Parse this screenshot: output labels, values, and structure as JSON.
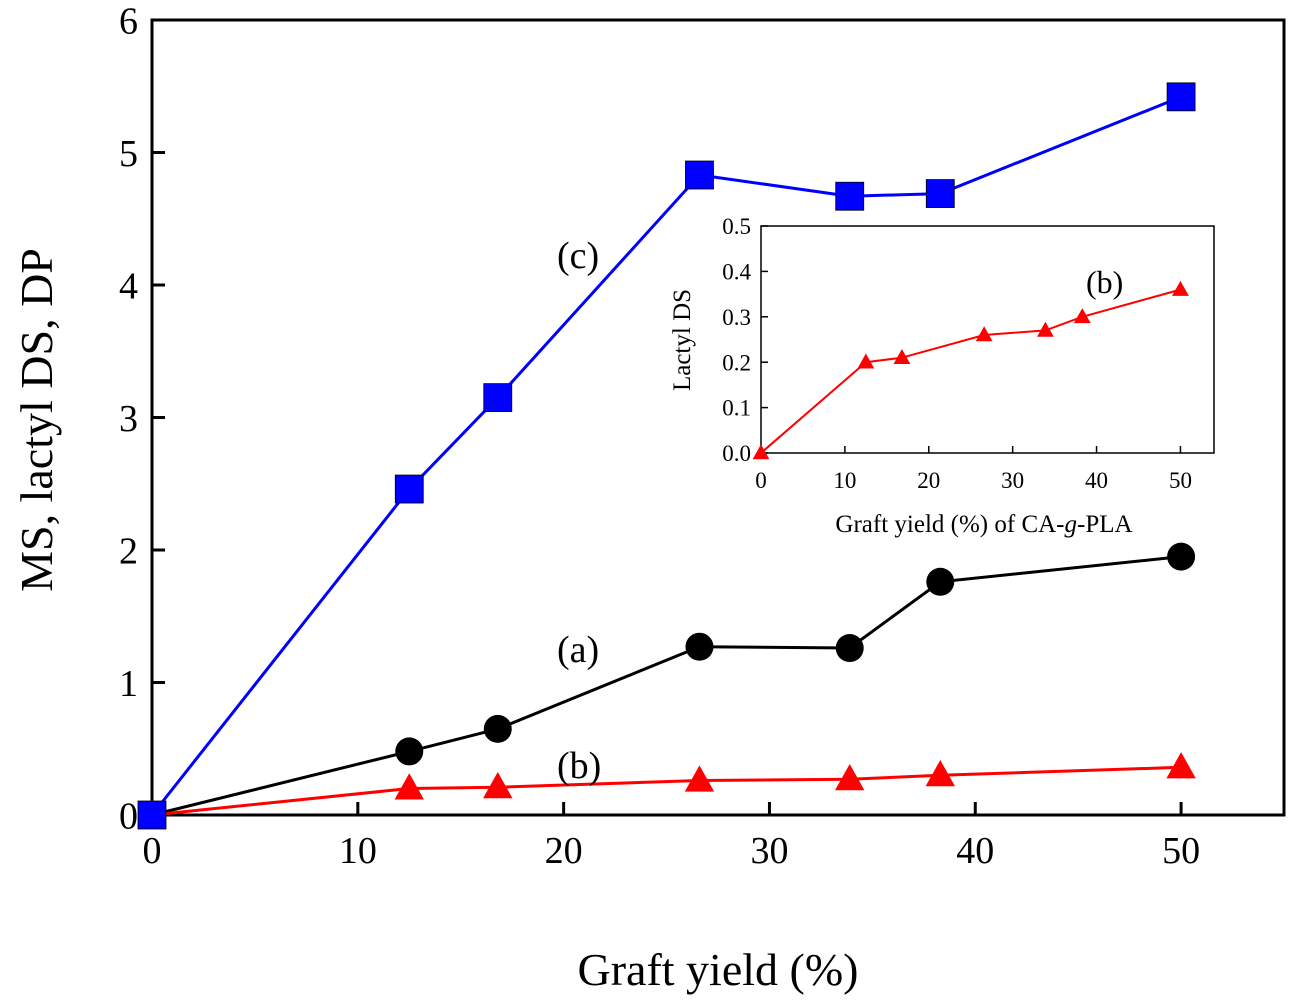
{
  "chart_data": [
    {
      "id": "main",
      "type": "line",
      "xlabel": "Graft yield (%)",
      "ylabel": "MS, lactyl DS, DP",
      "xlim": [
        0,
        55
      ],
      "ylim": [
        0,
        6
      ],
      "xticks": [
        0,
        10,
        20,
        30,
        40,
        50
      ],
      "yticks": [
        0,
        1,
        2,
        3,
        4,
        5,
        6
      ],
      "x": [
        0,
        12.5,
        16.8,
        26.6,
        33.9,
        38.3,
        50.0
      ],
      "series": [
        {
          "name": "(a)",
          "label": "(a)",
          "marker": "circle",
          "color": "#000000",
          "values": [
            0,
            0.48,
            0.65,
            1.27,
            1.26,
            1.76,
            1.95
          ]
        },
        {
          "name": "(b)",
          "label": "(b)",
          "marker": "triangle",
          "color": "#ff0000",
          "values": [
            0,
            0.2,
            0.21,
            0.26,
            0.27,
            0.3,
            0.36
          ]
        },
        {
          "name": "(c)",
          "label": "(c)",
          "marker": "square",
          "color": "#0000ff",
          "values": [
            0,
            2.46,
            3.15,
            4.83,
            4.67,
            4.69,
            5.42
          ]
        }
      ]
    },
    {
      "id": "inset",
      "type": "line",
      "xlabel_parts": [
        "Graft yield (%) of CA-",
        "g",
        "-PLA"
      ],
      "ylabel": "Lactyl DS",
      "xlim": [
        0,
        54
      ],
      "ylim": [
        0,
        0.5
      ],
      "xticks": [
        "0",
        "10",
        "20",
        "30",
        "40",
        "50"
      ],
      "yticks": [
        "0.0",
        "0.1",
        "0.2",
        "0.3",
        "0.4",
        "0.5"
      ],
      "x": [
        0,
        12.5,
        16.8,
        26.6,
        33.9,
        38.3,
        50.0
      ],
      "series": [
        {
          "name": "(b)",
          "label": "(b)",
          "marker": "triangle",
          "color": "#ff0000",
          "values": [
            0,
            0.2,
            0.21,
            0.26,
            0.27,
            0.3,
            0.36
          ]
        }
      ]
    }
  ]
}
